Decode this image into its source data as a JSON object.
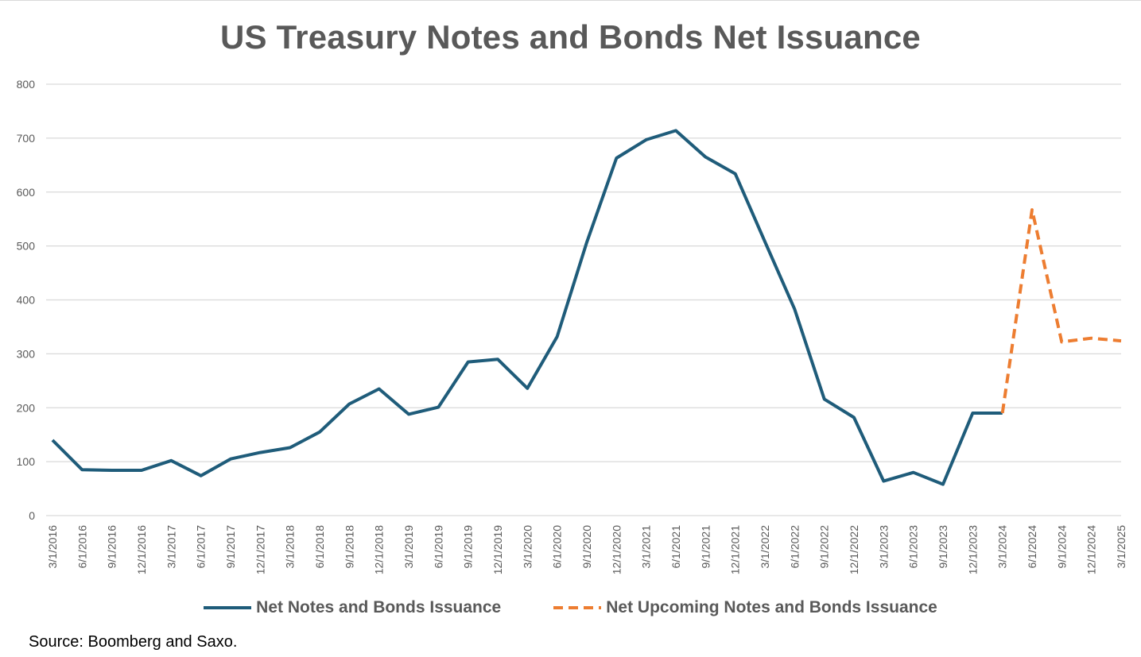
{
  "chart_data": {
    "type": "line",
    "title": "US Treasury Notes and Bonds Net Issuance",
    "xlabel": "",
    "ylabel": "",
    "ylim": [
      0,
      800
    ],
    "yticks": [
      0,
      100,
      200,
      300,
      400,
      500,
      600,
      700,
      800
    ],
    "grid": true,
    "legend_position": "bottom",
    "categories": [
      "3/1/2016",
      "6/1/2016",
      "9/1/2016",
      "12/1/2016",
      "3/1/2017",
      "6/1/2017",
      "9/1/2017",
      "12/1/2017",
      "3/1/2018",
      "6/1/2018",
      "9/1/2018",
      "12/1/2018",
      "3/1/2019",
      "6/1/2019",
      "9/1/2019",
      "12/1/2019",
      "3/1/2020",
      "6/1/2020",
      "9/1/2020",
      "12/1/2020",
      "3/1/2021",
      "6/1/2021",
      "9/1/2021",
      "12/1/2021",
      "3/1/2022",
      "6/1/2022",
      "9/1/2022",
      "12/1/2022",
      "3/1/2023",
      "6/1/2023",
      "9/1/2023",
      "12/1/2023",
      "3/1/2024",
      "6/1/2024",
      "9/1/2024",
      "12/1/2024",
      "3/1/2025"
    ],
    "series": [
      {
        "name": "Net Notes and Bonds Issuance",
        "color": "#1F5C7A",
        "style": "solid",
        "values": [
          140,
          85,
          84,
          84,
          102,
          74,
          105,
          117,
          126,
          155,
          207,
          235,
          188,
          201,
          285,
          290,
          236,
          332,
          507,
          663,
          697,
          714,
          665,
          634,
          508,
          383,
          216,
          182,
          64,
          80,
          58,
          190,
          190,
          null,
          null,
          null,
          null
        ]
      },
      {
        "name": "Net Upcoming Notes and Bonds Issuance",
        "color": "#ED7D31",
        "style": "dashed",
        "values": [
          null,
          null,
          null,
          null,
          null,
          null,
          null,
          null,
          null,
          null,
          null,
          null,
          null,
          null,
          null,
          null,
          null,
          null,
          null,
          null,
          null,
          null,
          null,
          null,
          null,
          null,
          null,
          null,
          null,
          null,
          null,
          null,
          190,
          567,
          322,
          329,
          324
        ]
      }
    ]
  },
  "source_note": "Source: Boomberg and Saxo."
}
